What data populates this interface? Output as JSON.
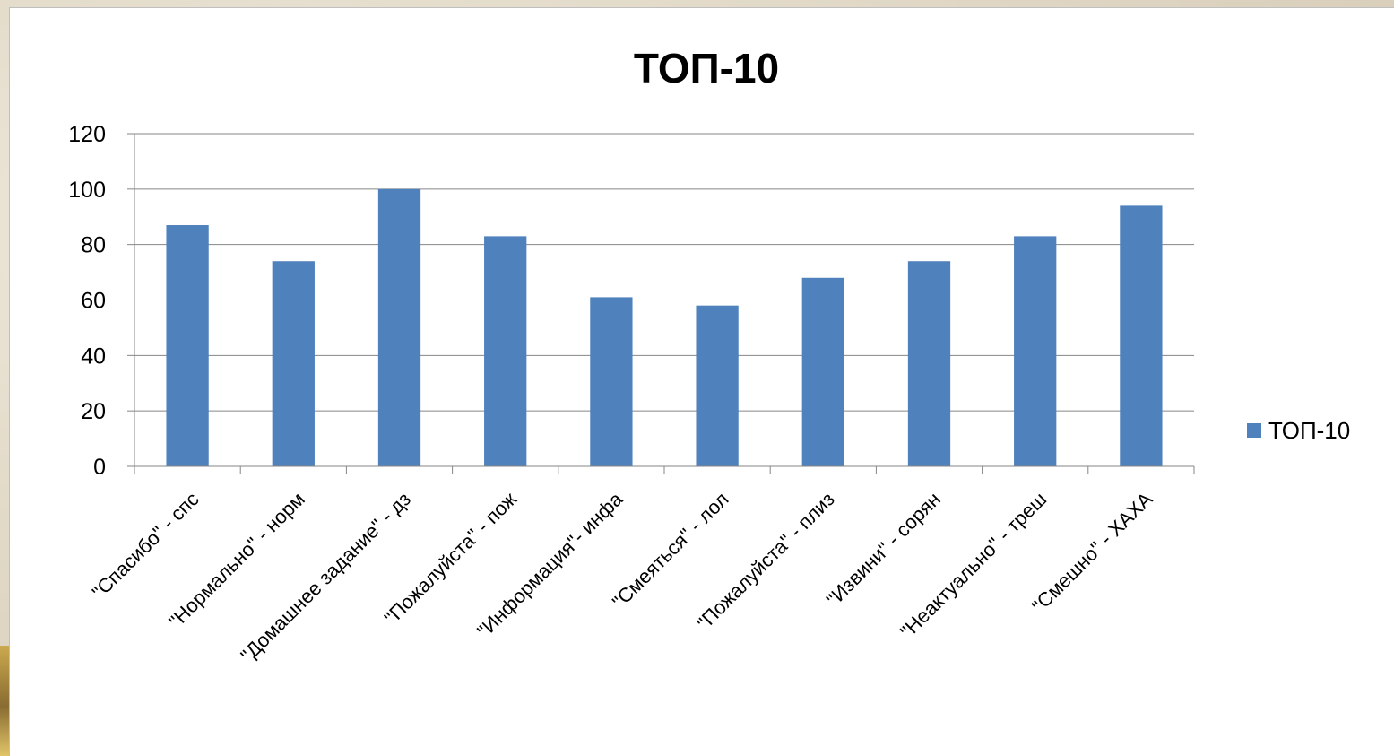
{
  "chart_data": {
    "type": "bar",
    "title": "ТОП-10",
    "categories": [
      "\"Спасибо\" - спс",
      "\"Нормально\" - норм",
      "\"Домашнее задание\" - дз",
      "\"Пожалуйста\" - пож",
      "\"Информация\"- инфа",
      "\"Смеяться\" - лол",
      "\"Пожалуйста\" - плиз",
      "\"Извини\" - сорян",
      "\"Неактуально\" - треш",
      "\"Смешно\" - ХАХА"
    ],
    "series": [
      {
        "name": "ТОП-10",
        "values": [
          87,
          74,
          100,
          83,
          61,
          58,
          68,
          74,
          83,
          94
        ],
        "color": "#4f81bd"
      }
    ],
    "ylim": [
      0,
      120
    ],
    "yticks": [
      0,
      20,
      40,
      60,
      80,
      100,
      120
    ],
    "grid": true,
    "legend_position": "right",
    "colors": {
      "gridline": "#868686",
      "axis": "#868686"
    }
  }
}
